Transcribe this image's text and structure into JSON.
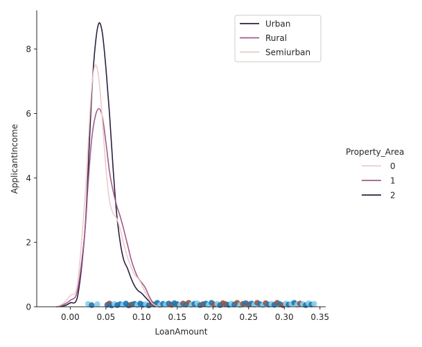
{
  "chart_data": {
    "type": "line",
    "xlabel": "LoanAmount",
    "ylabel": "ApplicantIncome",
    "xlim": [
      -0.047,
      0.358
    ],
    "ylim": [
      0,
      9.2
    ],
    "x_ticks": [
      0.0,
      0.05,
      0.1,
      0.15,
      0.2,
      0.25,
      0.3,
      0.35
    ],
    "x_tick_labels": [
      "0.00",
      "0.05",
      "0.10",
      "0.15",
      "0.20",
      "0.25",
      "0.30",
      "0.35"
    ],
    "y_ticks": [
      0,
      2,
      4,
      6,
      8
    ],
    "y_tick_labels": [
      "0",
      "2",
      "4",
      "6",
      "8"
    ],
    "legend_inner": {
      "placement": "upper-right",
      "entries": [
        {
          "label": "Urban",
          "color": "#2d1e3e"
        },
        {
          "label": "Rural",
          "color": "#a15a8b"
        },
        {
          "label": "Semiurban",
          "color": "#eccbcc"
        }
      ]
    },
    "legend_outer": {
      "title": "Property_Area",
      "placement": "right",
      "entries": [
        {
          "label": "0",
          "color": "#eccbcc"
        },
        {
          "label": "1",
          "color": "#a15a8b"
        },
        {
          "label": "2",
          "color": "#2d1e3e"
        }
      ]
    },
    "series": [
      {
        "label": "Urban",
        "color": "#2d1e3e",
        "width": 1.6,
        "points": [
          [
            -0.02,
            0
          ],
          [
            -0.01,
            0.02
          ],
          [
            0.0,
            0.12
          ],
          [
            0.01,
            0.3
          ],
          [
            0.02,
            2.2
          ],
          [
            0.025,
            4.2
          ],
          [
            0.03,
            6.6
          ],
          [
            0.035,
            8.1
          ],
          [
            0.04,
            8.8
          ],
          [
            0.045,
            8.5
          ],
          [
            0.05,
            7.4
          ],
          [
            0.055,
            6.0
          ],
          [
            0.06,
            4.3
          ],
          [
            0.065,
            2.9
          ],
          [
            0.07,
            2.0
          ],
          [
            0.075,
            1.45
          ],
          [
            0.08,
            1.2
          ],
          [
            0.085,
            0.9
          ],
          [
            0.09,
            0.65
          ],
          [
            0.095,
            0.5
          ],
          [
            0.1,
            0.42
          ],
          [
            0.105,
            0.3
          ],
          [
            0.11,
            0.18
          ],
          [
            0.115,
            0.08
          ],
          [
            0.12,
            0.02
          ],
          [
            0.125,
            0
          ]
        ]
      },
      {
        "label": "Rural",
        "color": "#a15a8b",
        "width": 1.6,
        "points": [
          [
            -0.02,
            0
          ],
          [
            -0.01,
            0.06
          ],
          [
            0.0,
            0.2
          ],
          [
            0.01,
            0.5
          ],
          [
            0.02,
            2.2
          ],
          [
            0.025,
            3.8
          ],
          [
            0.03,
            5.2
          ],
          [
            0.035,
            5.9
          ],
          [
            0.04,
            6.15
          ],
          [
            0.045,
            5.9
          ],
          [
            0.05,
            5.1
          ],
          [
            0.055,
            4.2
          ],
          [
            0.06,
            3.6
          ],
          [
            0.065,
            3.15
          ],
          [
            0.07,
            2.8
          ],
          [
            0.075,
            2.4
          ],
          [
            0.08,
            1.95
          ],
          [
            0.085,
            1.5
          ],
          [
            0.09,
            1.15
          ],
          [
            0.095,
            0.9
          ],
          [
            0.1,
            0.75
          ],
          [
            0.105,
            0.6
          ],
          [
            0.11,
            0.35
          ],
          [
            0.115,
            0.15
          ],
          [
            0.12,
            0.04
          ],
          [
            0.125,
            0
          ]
        ]
      },
      {
        "label": "Semiurban",
        "color": "#eccbcc",
        "width": 1.6,
        "points": [
          [
            -0.02,
            0
          ],
          [
            -0.01,
            0.1
          ],
          [
            0.0,
            0.35
          ],
          [
            0.01,
            0.7
          ],
          [
            0.02,
            3.2
          ],
          [
            0.025,
            5.0
          ],
          [
            0.03,
            6.8
          ],
          [
            0.035,
            7.5
          ],
          [
            0.04,
            7.1
          ],
          [
            0.045,
            5.8
          ],
          [
            0.05,
            4.3
          ],
          [
            0.055,
            3.3
          ],
          [
            0.06,
            2.9
          ],
          [
            0.065,
            2.75
          ],
          [
            0.07,
            2.4
          ],
          [
            0.075,
            1.95
          ],
          [
            0.08,
            1.55
          ],
          [
            0.085,
            1.25
          ],
          [
            0.09,
            1.0
          ],
          [
            0.095,
            0.88
          ],
          [
            0.1,
            0.7
          ],
          [
            0.105,
            0.45
          ],
          [
            0.11,
            0.25
          ],
          [
            0.115,
            0.1
          ],
          [
            0.12,
            0.03
          ],
          [
            0.125,
            0
          ]
        ]
      }
    ],
    "scatter": {
      "colors": [
        "#1f77b4",
        "#8c564b",
        "#87ceeb"
      ],
      "points": [
        [
          0.025,
          0.09,
          2
        ],
        [
          0.03,
          0.05,
          0
        ],
        [
          0.038,
          0.08,
          2
        ],
        [
          0.052,
          0.06,
          0
        ],
        [
          0.055,
          0.1,
          1
        ],
        [
          0.058,
          0.04,
          0
        ],
        [
          0.062,
          0.09,
          2
        ],
        [
          0.066,
          0.05,
          0
        ],
        [
          0.07,
          0.08,
          0
        ],
        [
          0.074,
          0.06,
          2
        ],
        [
          0.078,
          0.1,
          0
        ],
        [
          0.082,
          0.04,
          0
        ],
        [
          0.086,
          0.07,
          1
        ],
        [
          0.09,
          0.09,
          0
        ],
        [
          0.094,
          0.05,
          2
        ],
        [
          0.098,
          0.1,
          0
        ],
        [
          0.102,
          0.06,
          0
        ],
        [
          0.106,
          0.08,
          2
        ],
        [
          0.11,
          0.04,
          0
        ],
        [
          0.114,
          0.09,
          1
        ],
        [
          0.118,
          0.07,
          0
        ],
        [
          0.122,
          0.12,
          0
        ],
        [
          0.126,
          0.05,
          2
        ],
        [
          0.13,
          0.09,
          0
        ],
        [
          0.134,
          0.07,
          2
        ],
        [
          0.138,
          0.1,
          0
        ],
        [
          0.142,
          0.06,
          1
        ],
        [
          0.146,
          0.11,
          0
        ],
        [
          0.15,
          0.08,
          0
        ],
        [
          0.154,
          0.05,
          2
        ],
        [
          0.158,
          0.1,
          1
        ],
        [
          0.162,
          0.07,
          0
        ],
        [
          0.166,
          0.12,
          1
        ],
        [
          0.17,
          0.06,
          2
        ],
        [
          0.174,
          0.09,
          0
        ],
        [
          0.178,
          0.11,
          2
        ],
        [
          0.182,
          0.05,
          0
        ],
        [
          0.186,
          0.08,
          1
        ],
        [
          0.19,
          0.1,
          0
        ],
        [
          0.194,
          0.06,
          2
        ],
        [
          0.198,
          0.12,
          0
        ],
        [
          0.202,
          0.07,
          1
        ],
        [
          0.206,
          0.09,
          2
        ],
        [
          0.21,
          0.05,
          0
        ],
        [
          0.214,
          0.11,
          1
        ],
        [
          0.218,
          0.08,
          1
        ],
        [
          0.222,
          0.06,
          0
        ],
        [
          0.226,
          0.1,
          2
        ],
        [
          0.23,
          0.07,
          0
        ],
        [
          0.234,
          0.12,
          1
        ],
        [
          0.238,
          0.05,
          2
        ],
        [
          0.242,
          0.09,
          1
        ],
        [
          0.246,
          0.11,
          0
        ],
        [
          0.25,
          0.07,
          1
        ],
        [
          0.254,
          0.1,
          0
        ],
        [
          0.258,
          0.06,
          2
        ],
        [
          0.262,
          0.12,
          1
        ],
        [
          0.266,
          0.08,
          0
        ],
        [
          0.27,
          0.05,
          2
        ],
        [
          0.274,
          0.11,
          1
        ],
        [
          0.278,
          0.07,
          0
        ],
        [
          0.282,
          0.09,
          2
        ],
        [
          0.286,
          0.06,
          0
        ],
        [
          0.29,
          0.12,
          1
        ],
        [
          0.294,
          0.08,
          0
        ],
        [
          0.298,
          0.05,
          1
        ],
        [
          0.302,
          0.1,
          2
        ],
        [
          0.306,
          0.07,
          0
        ],
        [
          0.31,
          0.09,
          2
        ],
        [
          0.314,
          0.12,
          0
        ],
        [
          0.318,
          0.06,
          2
        ],
        [
          0.322,
          0.1,
          1
        ],
        [
          0.326,
          0.08,
          2
        ],
        [
          0.33,
          0.05,
          0
        ],
        [
          0.334,
          0.11,
          2
        ],
        [
          0.338,
          0.07,
          0
        ],
        [
          0.342,
          0.09,
          2
        ]
      ]
    }
  }
}
